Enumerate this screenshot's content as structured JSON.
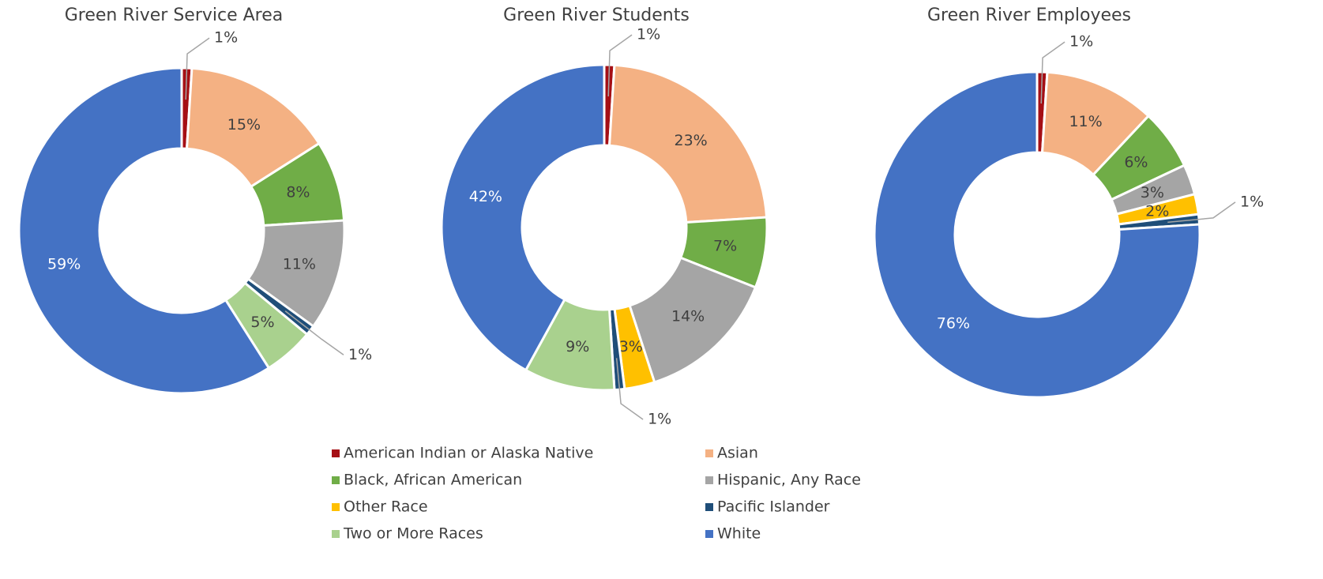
{
  "legend": {
    "categories": [
      "American Indian or Alaska Native",
      "Asian",
      "Black, African American",
      "Hispanic, Any Race",
      "Other Race",
      "Pacific Islander",
      "Two or More Races",
      "White"
    ],
    "colors": [
      "#a50f15",
      "#f4b183",
      "#70ad47",
      "#a5a5a5",
      "#ffc000",
      "#1f4e79",
      "#a9d18e",
      "#4472c4"
    ]
  },
  "chart_data": [
    {
      "type": "donut",
      "title": "Green River Service Area",
      "values": [
        1,
        15,
        8,
        11,
        0,
        1,
        5,
        59
      ],
      "value_labels": [
        "1%",
        "15%",
        "8%",
        "11%",
        null,
        "1%",
        "5%",
        "59%"
      ]
    },
    {
      "type": "donut",
      "title": "Green River Students",
      "values": [
        1,
        23,
        7,
        14,
        3,
        1,
        9,
        42
      ],
      "value_labels": [
        "1%",
        "23%",
        "7%",
        "14%",
        "3%",
        "1%",
        "9%",
        "42%"
      ]
    },
    {
      "type": "donut",
      "title": "Green River Employees",
      "values": [
        1,
        11,
        6,
        3,
        2,
        1,
        0,
        76
      ],
      "value_labels": [
        "1%",
        "11%",
        "6%",
        "3%",
        "2%",
        "1%",
        null,
        "76%"
      ]
    }
  ]
}
